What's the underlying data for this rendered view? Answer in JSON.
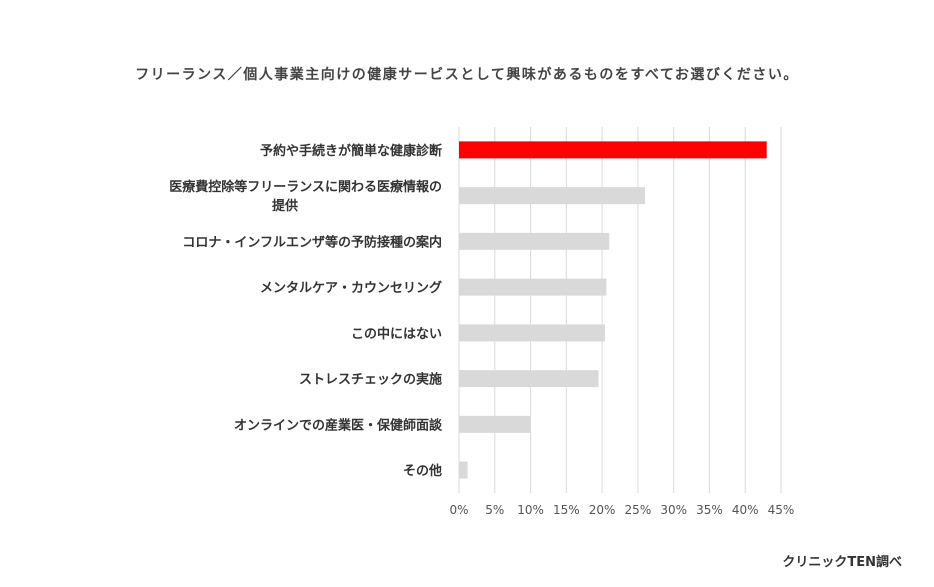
{
  "chart_data": {
    "type": "bar",
    "orientation": "horizontal",
    "title": "フリーランス／個人事業主向けの健康サービスとして興味があるものをすべてお選びください。",
    "categories": [
      [
        "予約や手続きが簡単な健康診断"
      ],
      [
        "医療費控除等フリーランスに関わる医療情報の",
        "提供"
      ],
      [
        "コロナ・インフルエンザ等の予防接種の案内"
      ],
      [
        "メンタルケア・カウンセリング"
      ],
      [
        "この中にはない"
      ],
      [
        "ストレスチェックの実施"
      ],
      [
        "オンラインでの産業医・保健師面談"
      ],
      [
        "その他"
      ]
    ],
    "values": [
      43,
      26,
      21,
      20.6,
      20.4,
      19.5,
      10,
      1.2
    ],
    "value_unit": "%",
    "xlim": [
      0,
      45
    ],
    "xticks": [
      0,
      5,
      10,
      15,
      20,
      25,
      30,
      35,
      40,
      45
    ],
    "xtick_labels": [
      "0%",
      "5%",
      "10%",
      "15%",
      "20%",
      "25%",
      "30%",
      "35%",
      "40%",
      "45%"
    ],
    "grid": true,
    "colors": {
      "highlight": "#ff0000",
      "default": "#d9d9d9",
      "grid": "#d9d9d9"
    },
    "highlight_index": 0
  },
  "source_note": "クリニックTEN調べ"
}
